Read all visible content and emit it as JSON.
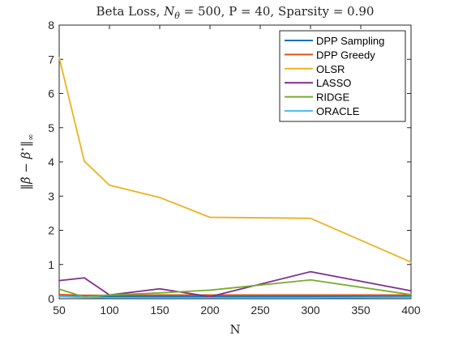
{
  "chart_data": {
    "type": "line",
    "title_parts": {
      "lead": "Beta Loss, ",
      "ntheta_symbol": "N",
      "ntheta_sub": "θ",
      "tail": " = 500, P = 40, Sparsity = 0.90"
    },
    "xlabel": "N",
    "ylabel_parts": {
      "open": "‖",
      "beta_hat": "β̂",
      "minus": " − ",
      "beta_star": "β",
      "star": "⋆",
      "close": "‖",
      "inf": "∞"
    },
    "xlim": [
      50,
      400
    ],
    "ylim": [
      0,
      8
    ],
    "xticks": [
      "50",
      "100",
      "150",
      "200",
      "250",
      "300",
      "350",
      "400"
    ],
    "yticks": [
      "0",
      "1",
      "2",
      "3",
      "4",
      "5",
      "6",
      "7",
      "8"
    ],
    "grid": false,
    "legend_position": "top-right",
    "x": [
      50,
      75,
      100,
      150,
      200,
      300,
      400
    ],
    "series": [
      {
        "name": "DPP Sampling",
        "color": "#0072BD",
        "values": [
          0.07,
          0.06,
          0.07,
          0.07,
          0.07,
          0.07,
          0.07
        ]
      },
      {
        "name": "DPP Greedy",
        "color": "#D95319",
        "values": [
          0.12,
          0.1,
          0.1,
          0.11,
          0.11,
          0.11,
          0.11
        ]
      },
      {
        "name": "OLSR",
        "color": "#EDB120",
        "values": [
          7.05,
          4.02,
          3.32,
          2.96,
          2.38,
          2.35,
          1.07
        ]
      },
      {
        "name": "LASSO",
        "color": "#7E2F8E",
        "values": [
          0.53,
          0.61,
          0.11,
          0.29,
          0.06,
          0.79,
          0.23
        ]
      },
      {
        "name": "RIDGE",
        "color": "#77AC30",
        "values": [
          0.28,
          0.05,
          0.11,
          0.17,
          0.25,
          0.55,
          0.12
        ]
      },
      {
        "name": "ORACLE",
        "color": "#4DBEEE",
        "values": [
          0.06,
          0.04,
          0.03,
          0.03,
          0.03,
          0.03,
          0.04
        ]
      }
    ]
  }
}
